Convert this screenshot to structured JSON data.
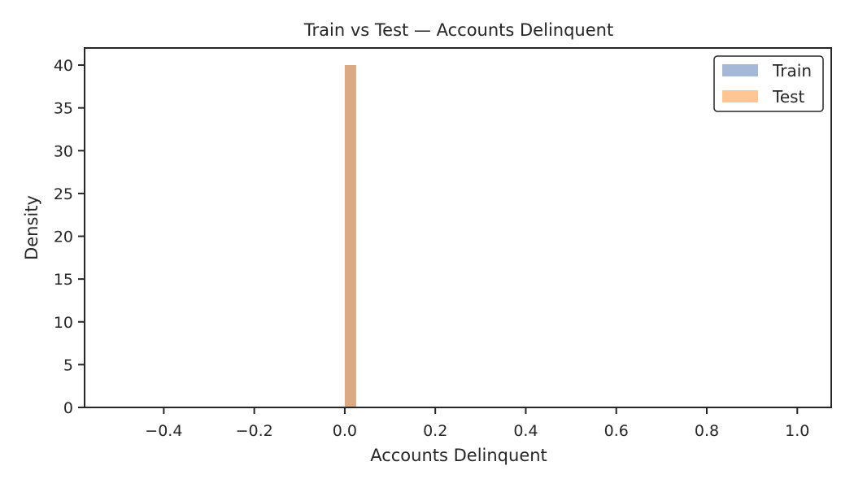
{
  "chart_data": {
    "type": "bar",
    "title": "Train vs Test — Accounts Delinquent",
    "xlabel": "Accounts Delinquent",
    "ylabel": "Density",
    "xlim": [
      -0.575,
      1.075
    ],
    "ylim": [
      0,
      42
    ],
    "xticks": [
      -0.4,
      -0.2,
      0.0,
      0.2,
      0.4,
      0.6,
      0.8,
      1.0
    ],
    "xtick_labels": [
      "−0.4",
      "−0.2",
      "0.0",
      "0.2",
      "0.4",
      "0.6",
      "0.8",
      "1.0"
    ],
    "yticks": [
      0,
      5,
      10,
      15,
      20,
      25,
      30,
      35,
      40
    ],
    "ytick_labels": [
      "0",
      "5",
      "10",
      "15",
      "20",
      "25",
      "30",
      "35",
      "40"
    ],
    "grid": false,
    "legend_position": "top-right",
    "series": [
      {
        "name": "Train",
        "color": "#4c72b0",
        "alpha": 0.5,
        "bins": [
          {
            "x0": 0.0,
            "x1": 0.025,
            "value": 40
          }
        ]
      },
      {
        "name": "Test",
        "color": "#ff9f4a",
        "alpha": 0.6,
        "bins": [
          {
            "x0": 0.0,
            "x1": 0.025,
            "value": 40
          }
        ]
      }
    ],
    "legend": [
      {
        "name": "Train",
        "color": "#4c72b0"
      },
      {
        "name": "Test",
        "color": "#ff9f4a"
      }
    ]
  }
}
